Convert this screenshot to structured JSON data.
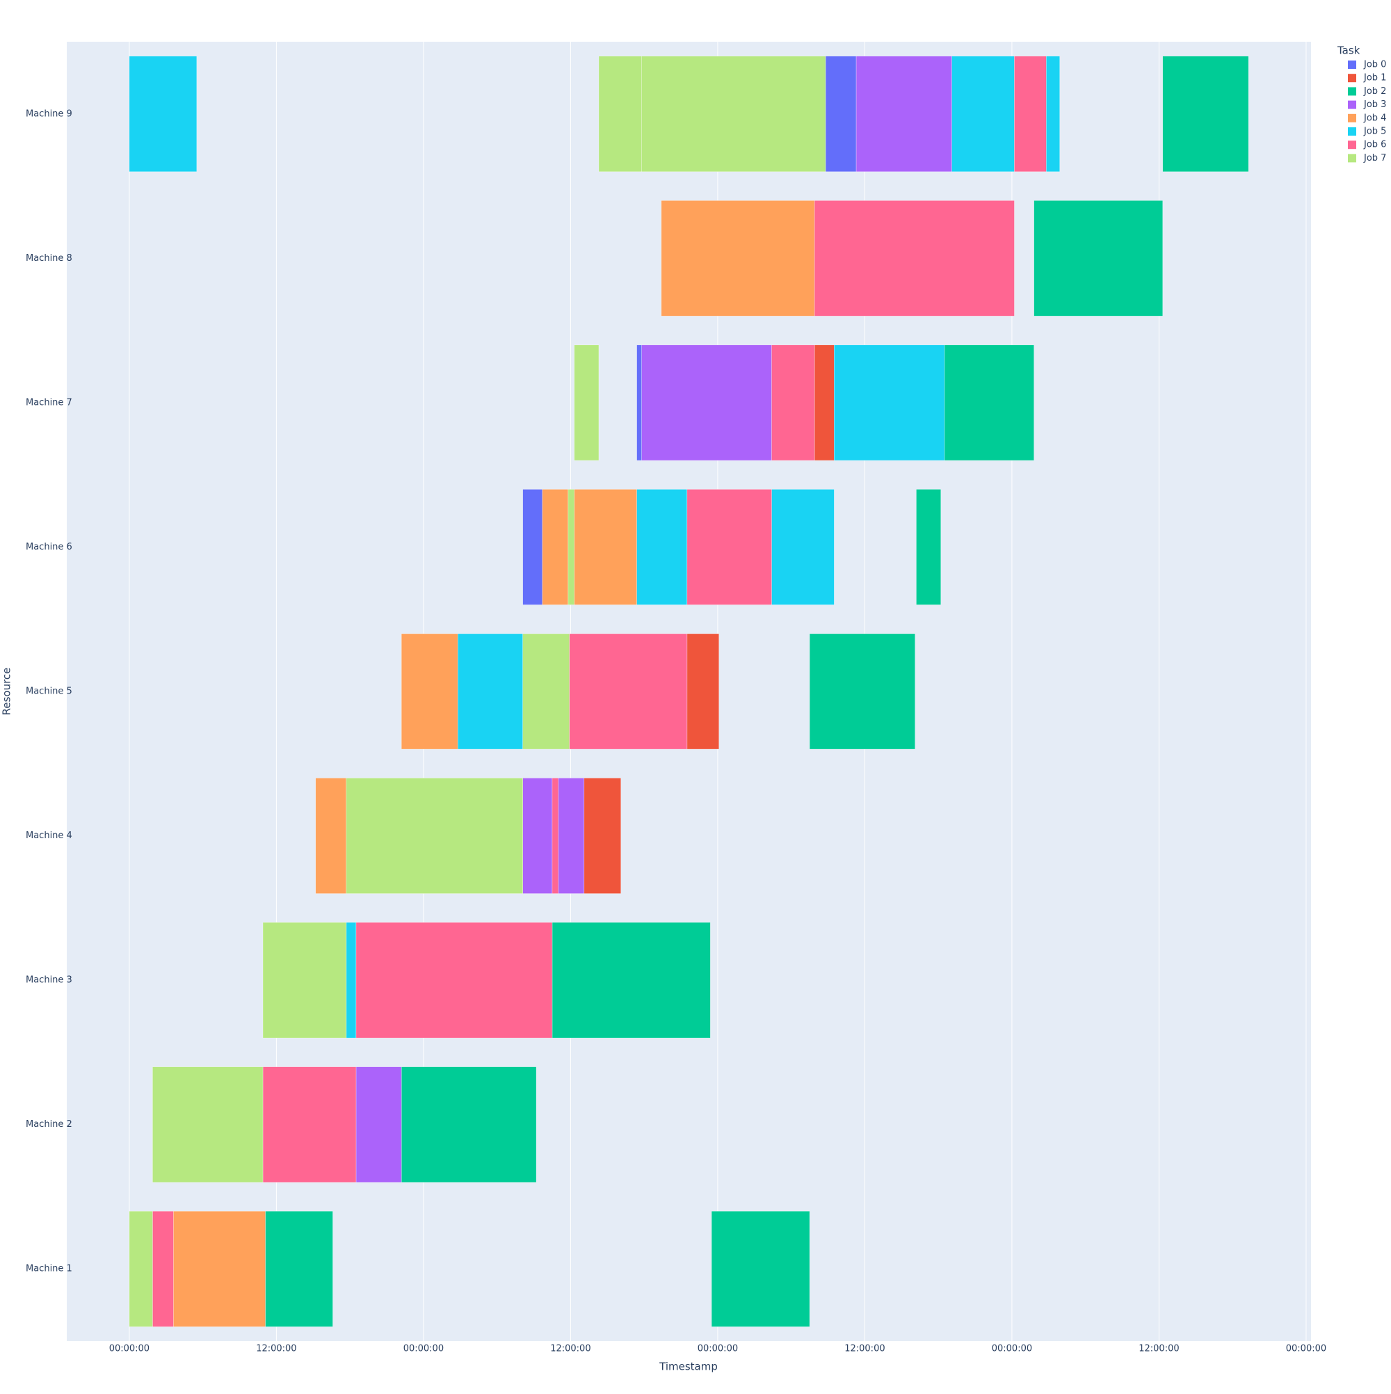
{
  "chart_data": {
    "type": "timeline",
    "xlabel": "Timestamp",
    "ylabel": "Resource",
    "legend_title": "Task",
    "legend": "outside-top-right",
    "grid": true,
    "categories": [
      "Machine 1",
      "Machine 2",
      "Machine 3",
      "Machine 4",
      "Machine 5",
      "Machine 6",
      "Machine 7",
      "Machine 8",
      "Machine 9"
    ],
    "xlim": [
      -5.1,
      96.4
    ],
    "xticks": [
      {
        "value": 0,
        "label": "00:00:00"
      },
      {
        "value": 12,
        "label": "12:00:00"
      },
      {
        "value": 24,
        "label": "00:00:00"
      },
      {
        "value": 36,
        "label": "12:00:00"
      },
      {
        "value": 48,
        "label": "00:00:00"
      },
      {
        "value": 60,
        "label": "12:00:00"
      },
      {
        "value": 72,
        "label": "00:00:00"
      },
      {
        "value": 84,
        "label": "12:00:00"
      },
      {
        "value": 96,
        "label": "00:00:00"
      }
    ],
    "series": [
      {
        "name": "Job 0",
        "color": "#636efa",
        "tasks": [
          {
            "resource": "Machine 9",
            "start": 56.8,
            "end": 59.3
          },
          {
            "resource": "Machine 7",
            "start": 41.4,
            "end": 41.8
          },
          {
            "resource": "Machine 6",
            "start": 32.1,
            "end": 33.7
          }
        ]
      },
      {
        "name": "Job 1",
        "color": "#ef553b",
        "tasks": [
          {
            "resource": "Machine 7",
            "start": 55.9,
            "end": 57.5
          },
          {
            "resource": "Machine 5",
            "start": 45.5,
            "end": 48.1
          },
          {
            "resource": "Machine 4",
            "start": 37.1,
            "end": 40.1
          }
        ]
      },
      {
        "name": "Job 2",
        "color": "#00cc96",
        "tasks": [
          {
            "resource": "Machine 9",
            "start": 84.3,
            "end": 91.3
          },
          {
            "resource": "Machine 8",
            "start": 73.8,
            "end": 84.3
          },
          {
            "resource": "Machine 7",
            "start": 66.5,
            "end": 73.8
          },
          {
            "resource": "Machine 6",
            "start": 64.2,
            "end": 66.2
          },
          {
            "resource": "Machine 5",
            "start": 55.5,
            "end": 64.1
          },
          {
            "resource": "Machine 3",
            "start": 34.5,
            "end": 47.4
          },
          {
            "resource": "Machine 2",
            "start": 22.2,
            "end": 33.2
          },
          {
            "resource": "Machine 1",
            "start": 11.1,
            "end": 16.6
          },
          {
            "resource": "Machine 1",
            "start": 47.5,
            "end": 55.5
          }
        ]
      },
      {
        "name": "Job 3",
        "color": "#ab63fa",
        "tasks": [
          {
            "resource": "Machine 9",
            "start": 59.3,
            "end": 67.1
          },
          {
            "resource": "Machine 7",
            "start": 41.8,
            "end": 52.4
          },
          {
            "resource": "Machine 4",
            "start": 32.1,
            "end": 34.5
          },
          {
            "resource": "Machine 4",
            "start": 35.0,
            "end": 37.1
          },
          {
            "resource": "Machine 2",
            "start": 18.5,
            "end": 22.2
          }
        ]
      },
      {
        "name": "Job 4",
        "color": "#ffa15a",
        "tasks": [
          {
            "resource": "Machine 8",
            "start": 43.4,
            "end": 55.9
          },
          {
            "resource": "Machine 6",
            "start": 33.7,
            "end": 35.8
          },
          {
            "resource": "Machine 6",
            "start": 36.3,
            "end": 41.4
          },
          {
            "resource": "Machine 5",
            "start": 22.2,
            "end": 26.8
          },
          {
            "resource": "Machine 4",
            "start": 15.2,
            "end": 17.7
          },
          {
            "resource": "Machine 1",
            "start": 3.6,
            "end": 11.1
          }
        ]
      },
      {
        "name": "Job 5",
        "color": "#19d3f3",
        "tasks": [
          {
            "resource": "Machine 9",
            "start": 0,
            "end": 5.5
          },
          {
            "resource": "Machine 9",
            "start": 67.1,
            "end": 72.2
          },
          {
            "resource": "Machine 9",
            "start": 74.8,
            "end": 75.9
          },
          {
            "resource": "Machine 7",
            "start": 57.5,
            "end": 66.5
          },
          {
            "resource": "Machine 6",
            "start": 41.4,
            "end": 45.5
          },
          {
            "resource": "Machine 6",
            "start": 52.4,
            "end": 57.5
          },
          {
            "resource": "Machine 5",
            "start": 26.8,
            "end": 32.1
          },
          {
            "resource": "Machine 3",
            "start": 17.7,
            "end": 18.5
          }
        ]
      },
      {
        "name": "Job 6",
        "color": "#ff6692",
        "tasks": [
          {
            "resource": "Machine 9",
            "start": 72.2,
            "end": 74.8
          },
          {
            "resource": "Machine 8",
            "start": 55.9,
            "end": 72.2
          },
          {
            "resource": "Machine 7",
            "start": 52.4,
            "end": 55.9
          },
          {
            "resource": "Machine 6",
            "start": 45.5,
            "end": 52.4
          },
          {
            "resource": "Machine 5",
            "start": 35.9,
            "end": 45.5
          },
          {
            "resource": "Machine 4",
            "start": 34.5,
            "end": 35.0
          },
          {
            "resource": "Machine 3",
            "start": 18.5,
            "end": 34.5
          },
          {
            "resource": "Machine 2",
            "start": 10.9,
            "end": 18.5
          },
          {
            "resource": "Machine 1",
            "start": 1.9,
            "end": 3.6
          }
        ]
      },
      {
        "name": "Job 7",
        "color": "#b6e880",
        "tasks": [
          {
            "resource": "Machine 9",
            "start": 38.3,
            "end": 41.8
          },
          {
            "resource": "Machine 9",
            "start": 41.8,
            "end": 56.8
          },
          {
            "resource": "Machine 7",
            "start": 36.3,
            "end": 38.3
          },
          {
            "resource": "Machine 6",
            "start": 35.8,
            "end": 36.3
          },
          {
            "resource": "Machine 5",
            "start": 32.1,
            "end": 35.9
          },
          {
            "resource": "Machine 4",
            "start": 17.7,
            "end": 32.1
          },
          {
            "resource": "Machine 3",
            "start": 10.9,
            "end": 17.7
          },
          {
            "resource": "Machine 2",
            "start": 1.9,
            "end": 10.9
          },
          {
            "resource": "Machine 1",
            "start": 0,
            "end": 1.9
          }
        ]
      }
    ]
  }
}
